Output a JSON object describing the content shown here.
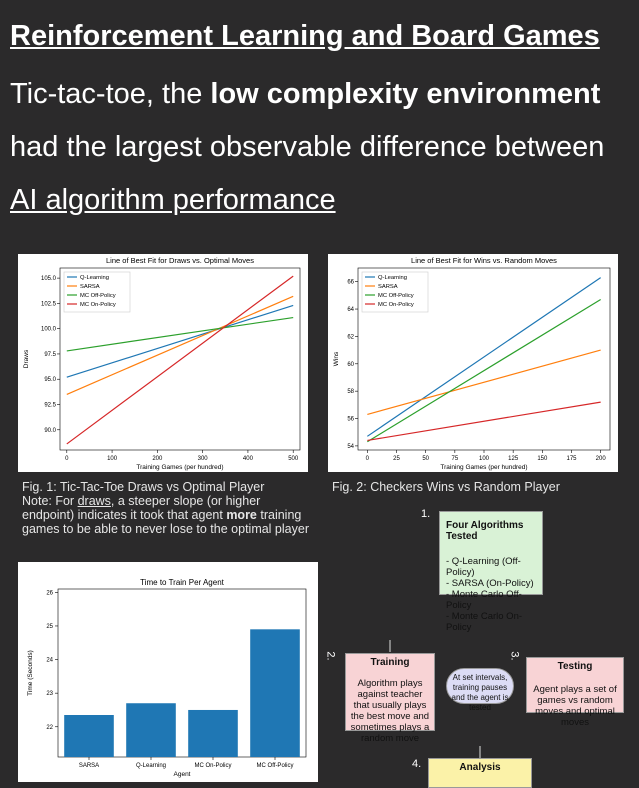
{
  "header": {
    "title": "Reinforcement Learning and Board Games",
    "line1_pre": "Tic-tac-toe, the ",
    "line1_bold": "low complexity environment",
    "line2": "had the largest observable difference between",
    "line3": "AI algorithm performance"
  },
  "fig1_caption": {
    "l1": "Fig. 1: Tic-Tac-Toe Draws vs Optimal Player",
    "l2_pre": "Note: For ",
    "l2_em": "draws",
    "l2_post": ", a steeper slope (or higher",
    "l3_pre": "endpoint) indicates it took that agent ",
    "l3_bold": "more",
    "l3_post": " training",
    "l4": "games to be able to never lose to the optimal player"
  },
  "fig2_caption": "Fig. 2: Checkers Wins vs Random Player",
  "colors": {
    "blue": "#1f77b4",
    "orange": "#ff7f0e",
    "green": "#2ca02c",
    "red": "#d62728"
  },
  "chart_data": [
    {
      "type": "line",
      "title": "Line of Best Fit for Draws vs. Optimal Moves",
      "xlabel": "Training Games (per hundred)",
      "ylabel": "Draws",
      "xlim": [
        -15,
        515
      ],
      "ylim": [
        88,
        106
      ],
      "xticks": [
        "0",
        "100",
        "200",
        "300",
        "400",
        "500"
      ],
      "yticks": [
        "90.0",
        "92.5",
        "95.0",
        "97.5",
        "100.0",
        "102.5",
        "105.0"
      ],
      "legend": "top-left",
      "series": [
        {
          "name": "Q-Learning",
          "x": [
            0,
            500
          ],
          "y": [
            95.2,
            102.3
          ],
          "color": "#1f77b4"
        },
        {
          "name": "SARSA",
          "x": [
            0,
            500
          ],
          "y": [
            93.5,
            103.2
          ],
          "color": "#ff7f0e"
        },
        {
          "name": "MC Off-Policy",
          "x": [
            0,
            500
          ],
          "y": [
            97.8,
            101.1
          ],
          "color": "#2ca02c"
        },
        {
          "name": "MC On-Policy",
          "x": [
            0,
            500
          ],
          "y": [
            88.6,
            105.2
          ],
          "color": "#d62728"
        }
      ]
    },
    {
      "type": "line",
      "title": "Line of Best Fit for Wins vs. Random Moves",
      "xlabel": "Training Games (per hundred)",
      "ylabel": "Wins",
      "xlim": [
        -8,
        208
      ],
      "ylim": [
        53.7,
        67
      ],
      "xticks": [
        "0",
        "25",
        "50",
        "75",
        "100",
        "125",
        "150",
        "175",
        "200"
      ],
      "yticks": [
        "54",
        "56",
        "58",
        "60",
        "62",
        "64",
        "66"
      ],
      "legend": "top-left",
      "series": [
        {
          "name": "Q-Learning",
          "x": [
            0,
            200
          ],
          "y": [
            54.7,
            66.3
          ],
          "color": "#1f77b4"
        },
        {
          "name": "SARSA",
          "x": [
            0,
            200
          ],
          "y": [
            56.3,
            61.0
          ],
          "color": "#ff7f0e"
        },
        {
          "name": "MC Off-Policy",
          "x": [
            0,
            200
          ],
          "y": [
            54.3,
            64.7
          ],
          "color": "#2ca02c"
        },
        {
          "name": "MC On-Policy",
          "x": [
            0,
            200
          ],
          "y": [
            54.4,
            57.2
          ],
          "color": "#d62728"
        }
      ]
    },
    {
      "type": "bar",
      "title": "Time to Train Per Agent",
      "xlabel": "Agent",
      "ylabel": "Time (Seconds)",
      "ylim": [
        21.1,
        26.1
      ],
      "yticks": [
        "22",
        "23",
        "24",
        "25",
        "26"
      ],
      "categories": [
        "SARSA",
        "Q-Learning",
        "MC On-Policy",
        "MC Off-Policy"
      ],
      "values": [
        22.35,
        22.7,
        22.5,
        24.9
      ],
      "color": "#1f77b4"
    }
  ],
  "diagram": {
    "n1": "1.",
    "n2": "2.",
    "n3": "3.",
    "n4": "4.",
    "algos_title": "Four Algorithms Tested",
    "algos": [
      "- Q-Learning (Off-Policy)",
      "- SARSA (On-Policy)",
      "- Monte Carlo Off-Policy",
      "- Monte Carlo On-Policy"
    ],
    "training_title": "Training",
    "training_text": "Algorithm plays against teacher that usually plays the best move and sometimes plays a random move",
    "middle_text": "At set intervals, training pauses and the agent is tested",
    "testing_title": "Testing",
    "testing_text": "Agent plays a set of games vs random moves and optimal moves",
    "analysis_title": "Analysis"
  }
}
